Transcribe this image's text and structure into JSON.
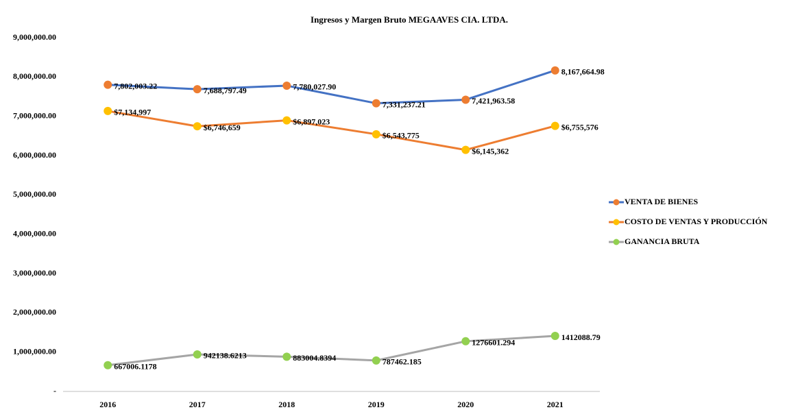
{
  "chart_data": {
    "type": "line",
    "title": "Ingresos y Margen Bruto MEGAAVES CIA. LTDA.",
    "categories": [
      "2016",
      "2017",
      "2018",
      "2019",
      "2020",
      "2021"
    ],
    "series": [
      {
        "name": "VENTA DE BIENES",
        "color": "#4472c4",
        "marker_color": "#ed7d31",
        "values": [
          7802003.22,
          7688797.49,
          7780027.9,
          7331237.21,
          7421963.58,
          8167664.98
        ],
        "value_labels": [
          "7,802,003.22",
          "7,688,797.49",
          "7,780,027.90",
          "7,331,237.21",
          "7,421,963.58",
          "8,167,664.98"
        ]
      },
      {
        "name": "COSTO DE VENTAS Y PRODUCCIÓN",
        "color": "#ed7d31",
        "marker_color": "#ffc000",
        "values": [
          7134997,
          6746659,
          6897023,
          6543775,
          6145362,
          6755576
        ],
        "value_labels": [
          "$7,134,997",
          "$6,746,659",
          "$6,897,023",
          "$6,543,775",
          "$6,145,362",
          "$6,755,576"
        ]
      },
      {
        "name": "GANANCIA BRUTA",
        "color": "#a5a5a5",
        "marker_color": "#92d050",
        "values": [
          667006.1178,
          942138.6213,
          883004.8394,
          787462.185,
          1276601.294,
          1412088.79
        ]
      }
    ],
    "ylim": [
      0,
      9000000
    ],
    "yticks": [
      {
        "value": 0,
        "label": "-"
      },
      {
        "value": 1000000,
        "label": "1,000,000.00"
      },
      {
        "value": 2000000,
        "label": "2,000,000.00"
      },
      {
        "value": 3000000,
        "label": "3,000,000.00"
      },
      {
        "value": 4000000,
        "label": "4,000,000.00"
      },
      {
        "value": 5000000,
        "label": "5,000,000.00"
      },
      {
        "value": 6000000,
        "label": "6,000,000.00"
      },
      {
        "value": 7000000,
        "label": "7,000,000.00"
      },
      {
        "value": 8000000,
        "label": "8,000,000.00"
      },
      {
        "value": 9000000,
        "label": "9,000,000.00"
      }
    ],
    "grid": false,
    "legend": "right"
  }
}
